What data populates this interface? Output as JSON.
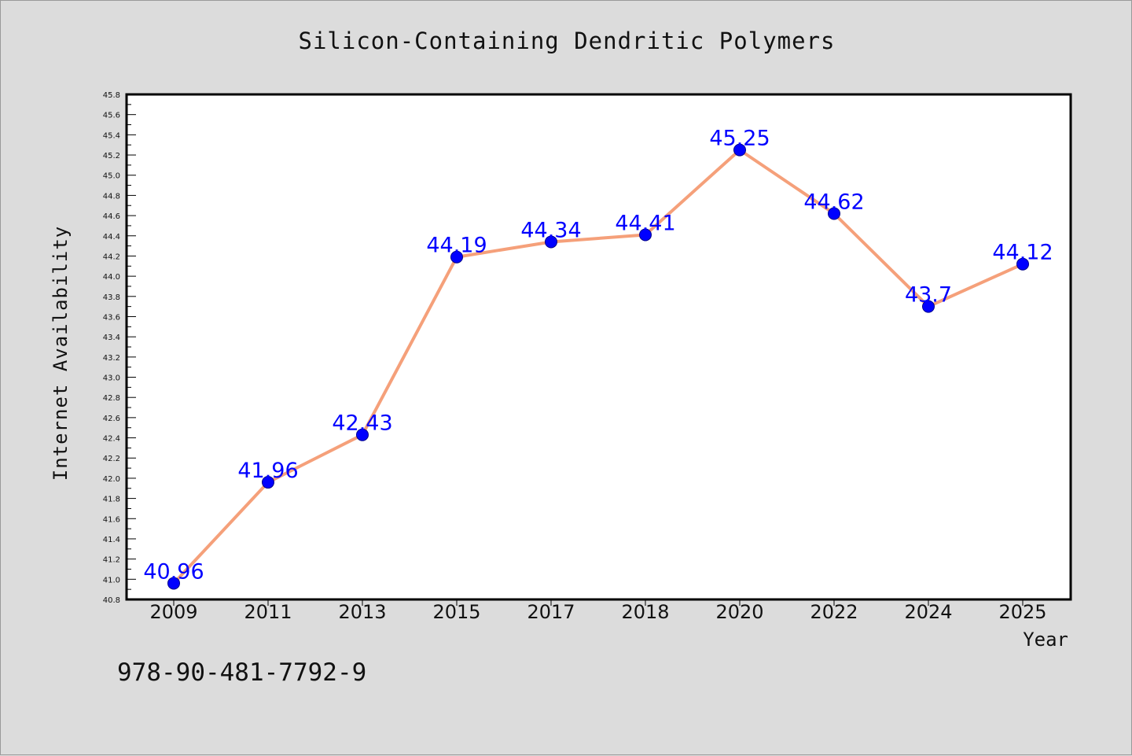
{
  "chart_data": {
    "type": "line",
    "title": "Silicon-Containing Dendritic Polymers",
    "xlabel": "Year",
    "ylabel": "Internet Availability",
    "categories": [
      "2009",
      "2011",
      "2013",
      "2015",
      "2017",
      "2018",
      "2020",
      "2022",
      "2024",
      "2025"
    ],
    "series": [
      {
        "values": [
          40.96,
          41.96,
          42.43,
          44.19,
          44.34,
          44.41,
          45.25,
          44.62,
          43.7,
          44.12
        ],
        "labels": [
          "40.96",
          "41.96",
          "42.43",
          "44.19",
          "44.34",
          "44.41",
          "45.25",
          "44.62",
          "43.7",
          "44.12"
        ],
        "line_color": "#f5a07a",
        "marker_color": "#0000ff"
      }
    ],
    "ylim": [
      40.8,
      45.8
    ],
    "yticks": [
      "40.8",
      "41.0",
      "41.2",
      "41.4",
      "41.6",
      "41.8",
      "42.0",
      "42.2",
      "42.4",
      "42.6",
      "42.8",
      "43.0",
      "43.2",
      "43.4",
      "43.6",
      "43.8",
      "44.0",
      "44.2",
      "44.4",
      "44.6",
      "44.8",
      "45.0",
      "45.2",
      "45.4",
      "45.6",
      "45.8"
    ],
    "grid": false,
    "legend": "none"
  },
  "footer": {
    "code": "978-90-481-7792-9"
  },
  "colors": {
    "background": "#dcdcdc",
    "plot_area": "#ffffff",
    "axis": "#000000"
  }
}
